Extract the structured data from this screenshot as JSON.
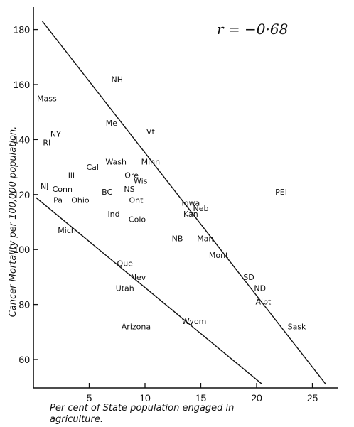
{
  "chart_data": {
    "type": "scatter",
    "correlation_text": "r = −0·68",
    "xlabel_line1": "Per cent of State population engaged in",
    "xlabel_line2": "agriculture.",
    "ylabel": "Cancer Mortality per 100,000 population.",
    "xlim": [
      0,
      27
    ],
    "ylim": [
      50,
      188
    ],
    "xticks": [
      5,
      10,
      15,
      20,
      25
    ],
    "yticks": [
      60,
      80,
      100,
      120,
      140,
      160,
      180
    ],
    "points": [
      {
        "label": "NH",
        "x": 7.5,
        "y": 162
      },
      {
        "label": "Mass",
        "x": 1.2,
        "y": 155
      },
      {
        "label": "Me",
        "x": 7.0,
        "y": 146
      },
      {
        "label": "Vt",
        "x": 10.5,
        "y": 143
      },
      {
        "label": "NY",
        "x": 2.0,
        "y": 142
      },
      {
        "label": "RI",
        "x": 1.2,
        "y": 139
      },
      {
        "label": "Wash",
        "x": 7.4,
        "y": 132
      },
      {
        "label": "Minn",
        "x": 10.5,
        "y": 132
      },
      {
        "label": "Cal",
        "x": 5.3,
        "y": 130
      },
      {
        "label": "Ore",
        "x": 8.8,
        "y": 127
      },
      {
        "label": "Ill",
        "x": 3.4,
        "y": 127
      },
      {
        "label": "Wis",
        "x": 9.6,
        "y": 125
      },
      {
        "label": "NJ",
        "x": 1.0,
        "y": 123
      },
      {
        "label": "Conn",
        "x": 2.6,
        "y": 122
      },
      {
        "label": "NS",
        "x": 8.6,
        "y": 122
      },
      {
        "label": "BC",
        "x": 6.6,
        "y": 121
      },
      {
        "label": "PEI",
        "x": 22.2,
        "y": 121
      },
      {
        "label": "Pa",
        "x": 2.2,
        "y": 118
      },
      {
        "label": "Ohio",
        "x": 4.2,
        "y": 118
      },
      {
        "label": "Ont",
        "x": 9.2,
        "y": 118
      },
      {
        "label": "Iowa",
        "x": 14.1,
        "y": 117
      },
      {
        "label": "Neb",
        "x": 15.0,
        "y": 115
      },
      {
        "label": "Kan",
        "x": 14.1,
        "y": 113
      },
      {
        "label": "Ind",
        "x": 7.2,
        "y": 113
      },
      {
        "label": "Colo",
        "x": 9.3,
        "y": 111
      },
      {
        "label": "Mich",
        "x": 3.0,
        "y": 107
      },
      {
        "label": "NB",
        "x": 12.9,
        "y": 104
      },
      {
        "label": "Man",
        "x": 15.4,
        "y": 104
      },
      {
        "label": "Mont",
        "x": 16.6,
        "y": 98
      },
      {
        "label": "Que",
        "x": 8.2,
        "y": 95
      },
      {
        "label": "Nev",
        "x": 9.4,
        "y": 90
      },
      {
        "label": "SD",
        "x": 19.3,
        "y": 90
      },
      {
        "label": "ND",
        "x": 20.3,
        "y": 86
      },
      {
        "label": "Utah",
        "x": 8.2,
        "y": 86
      },
      {
        "label": "Albt",
        "x": 20.6,
        "y": 81
      },
      {
        "label": "Wyom",
        "x": 14.4,
        "y": 74
      },
      {
        "label": "Arizona",
        "x": 9.2,
        "y": 72
      },
      {
        "label": "Sask",
        "x": 23.6,
        "y": 72
      }
    ],
    "upper_line": [
      [
        0.8,
        183
      ],
      [
        26.2,
        51
      ]
    ],
    "lower_line": [
      [
        0.2,
        119
      ],
      [
        20.5,
        51
      ]
    ]
  }
}
